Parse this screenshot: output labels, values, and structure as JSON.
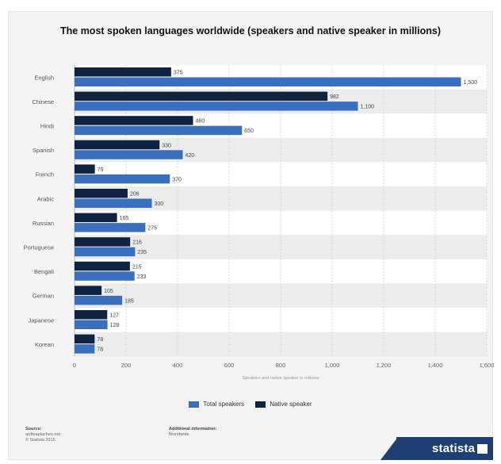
{
  "chart_data": {
    "type": "bar",
    "orientation": "horizontal",
    "title": "The most spoken languages worldwide (speakers and native speaker in millions)",
    "xlabel": "Speakers and native speaker in millions",
    "categories": [
      "English",
      "Chinese",
      "Hindi",
      "Spanish",
      "French",
      "Arabic",
      "Russian",
      "Portuguese",
      "Bengali",
      "German",
      "Japanese",
      "Korean"
    ],
    "series": [
      {
        "name": "Native speaker",
        "values": [
          375,
          982,
          460,
          330,
          79,
          206,
          165,
          216,
          215,
          105,
          127,
          78
        ],
        "color": "#0f2240"
      },
      {
        "name": "Total speakers",
        "values": [
          1500,
          1100,
          650,
          420,
          370,
          300,
          275,
          235,
          233,
          185,
          128,
          78
        ],
        "color": "#3a6fc0"
      }
    ],
    "value_labels": {
      "Native speaker": [
        "375",
        "982",
        "460",
        "330",
        "79",
        "206",
        "165",
        "216",
        "215",
        "105",
        "127",
        "78"
      ],
      "Total speakers": [
        "1,500",
        "1,100",
        "650",
        "420",
        "370",
        "300",
        "275",
        "235",
        "233",
        "185",
        "128",
        "78"
      ]
    },
    "xlim": [
      0,
      1600
    ],
    "xticks": [
      0,
      200,
      400,
      600,
      800,
      1000,
      1200,
      1400,
      1600
    ],
    "xtick_labels": [
      "0",
      "200",
      "400",
      "600",
      "800",
      "1,000",
      "1,200",
      "1,400",
      "1,600"
    ],
    "grid": true,
    "legend_position": "bottom"
  },
  "legend": {
    "total_label": "Total speakers",
    "native_label": "Native speaker"
  },
  "footer": {
    "source_heading": "Source:",
    "source_line1": "ardteaplachen.net",
    "source_line2": "© Statista 2015",
    "info_heading": "Additional information:",
    "info_line1": "Worldwide"
  },
  "logo": {
    "text": "statista"
  }
}
